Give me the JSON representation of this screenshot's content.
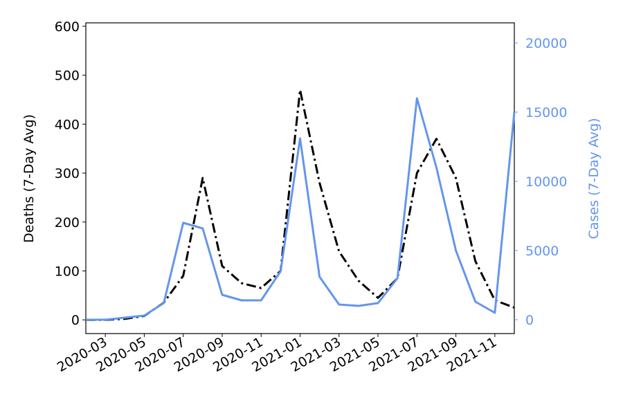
{
  "chart_data": {
    "type": "line",
    "x": [
      "2020-02",
      "2020-03",
      "2020-04",
      "2020-05",
      "2020-06",
      "2020-07",
      "2020-08",
      "2020-09",
      "2020-10",
      "2020-11",
      "2020-12",
      "2021-01",
      "2021-02",
      "2021-03",
      "2021-04",
      "2021-05",
      "2021-06",
      "2021-07",
      "2021-08",
      "2021-09",
      "2021-10",
      "2021-11",
      "2021-12"
    ],
    "xlim": [
      "2020-02",
      "2021-12"
    ],
    "xticks": [
      "2020-03",
      "2020-05",
      "2020-07",
      "2020-09",
      "2020-11",
      "2021-01",
      "2021-03",
      "2021-05",
      "2021-07",
      "2021-09",
      "2021-11"
    ],
    "ylabel": "Deaths (7-Day Avg)",
    "y2label": "Cases (7-Day Avg)",
    "ylim": [
      -28,
      607
    ],
    "yticks": [
      0,
      100,
      200,
      300,
      400,
      500,
      600
    ],
    "y2lim": [
      -1000,
      21450
    ],
    "y2ticks": [
      0,
      5000,
      10000,
      15000,
      20000
    ],
    "y2color": "#6495ed",
    "series": [
      {
        "name": "Deaths",
        "color": "#000000",
        "dash": "dashdot",
        "axis": "y",
        "values": [
          0,
          0,
          2,
          8,
          35,
          90,
          290,
          110,
          75,
          65,
          100,
          470,
          280,
          140,
          80,
          45,
          85,
          300,
          370,
          290,
          120,
          40,
          25
        ]
      },
      {
        "name": "Cases",
        "color": "#6495ed",
        "dash": "solid",
        "axis": "y2",
        "values": [
          0,
          0,
          150,
          300,
          1200,
          7000,
          6600,
          1800,
          1400,
          1400,
          3500,
          13100,
          3100,
          1100,
          1000,
          1200,
          3000,
          16000,
          11000,
          5000,
          1300,
          500,
          15000
        ]
      }
    ]
  }
}
